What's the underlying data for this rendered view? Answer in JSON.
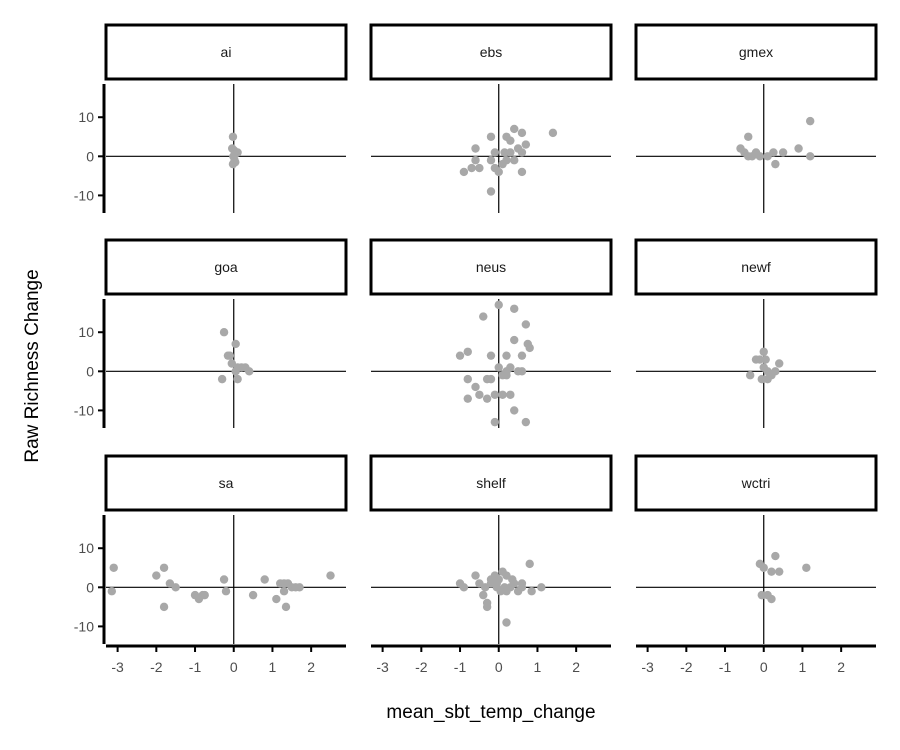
{
  "chart_data": {
    "type": "scatter",
    "facet_layout": "3x3 grid",
    "xlabel": "mean_sbt_temp_change",
    "ylabel": "Raw Richness Change",
    "xlim": [
      -3.3,
      2.9
    ],
    "ylim": [
      -14.5,
      18.5
    ],
    "x_ticks": [
      -3,
      -2,
      -1,
      0,
      1,
      2
    ],
    "y_ticks": [
      -10,
      0,
      10
    ],
    "reference_lines": {
      "x": 0,
      "y": 0
    },
    "grid": false,
    "point_color": "#a8a8a8",
    "panels": [
      {
        "name": "ai",
        "points": [
          [
            -0.02,
            5
          ],
          [
            -0.04,
            2
          ],
          [
            0.01,
            1.5
          ],
          [
            0.03,
            0.5
          ],
          [
            -0.01,
            0
          ],
          [
            0.1,
            1
          ],
          [
            0.02,
            -1
          ],
          [
            -0.02,
            -2
          ],
          [
            0.04,
            -1.5
          ]
        ]
      },
      {
        "name": "ebs",
        "points": [
          [
            -0.9,
            -4
          ],
          [
            -0.7,
            -3
          ],
          [
            -0.6,
            2
          ],
          [
            -0.6,
            -1
          ],
          [
            -0.5,
            -3
          ],
          [
            -0.2,
            -1
          ],
          [
            -0.2,
            5
          ],
          [
            -0.1,
            -3
          ],
          [
            -0.1,
            1
          ],
          [
            0,
            -4
          ],
          [
            -0.2,
            -9
          ],
          [
            0.1,
            -2
          ],
          [
            0.15,
            1
          ],
          [
            0.2,
            -1
          ],
          [
            0.2,
            5
          ],
          [
            0.3,
            4
          ],
          [
            0.3,
            1
          ],
          [
            0.4,
            -1
          ],
          [
            0.4,
            7
          ],
          [
            0.5,
            2
          ],
          [
            0.6,
            6
          ],
          [
            0.6,
            1
          ],
          [
            0.6,
            -4
          ],
          [
            0.7,
            3
          ],
          [
            1.4,
            6
          ]
        ]
      },
      {
        "name": "gmex",
        "points": [
          [
            -0.6,
            2
          ],
          [
            -0.5,
            1
          ],
          [
            -0.4,
            5
          ],
          [
            -0.4,
            0
          ],
          [
            -0.3,
            0
          ],
          [
            -0.2,
            1
          ],
          [
            -0.1,
            0
          ],
          [
            0.1,
            0
          ],
          [
            0.25,
            1
          ],
          [
            0.3,
            -2
          ],
          [
            0.5,
            1
          ],
          [
            0.9,
            2
          ],
          [
            1.2,
            9
          ],
          [
            1.2,
            0
          ]
        ]
      },
      {
        "name": "goa",
        "points": [
          [
            -0.25,
            10
          ],
          [
            -0.15,
            4
          ],
          [
            -0.1,
            4
          ],
          [
            -0.05,
            2
          ],
          [
            0.05,
            7
          ],
          [
            0.05,
            0
          ],
          [
            0.1,
            1
          ],
          [
            0.1,
            -2
          ],
          [
            0.2,
            1
          ],
          [
            0.3,
            1
          ],
          [
            0.4,
            0
          ],
          [
            -0.3,
            -2
          ]
        ]
      },
      {
        "name": "neus",
        "points": [
          [
            -1.0,
            4
          ],
          [
            -0.8,
            5
          ],
          [
            -0.8,
            -2
          ],
          [
            -0.8,
            -7
          ],
          [
            -0.6,
            -4
          ],
          [
            -0.5,
            -6
          ],
          [
            -0.4,
            14
          ],
          [
            -0.3,
            -7
          ],
          [
            -0.3,
            -2
          ],
          [
            -0.2,
            -2
          ],
          [
            -0.2,
            4
          ],
          [
            -0.1,
            -13
          ],
          [
            -0.1,
            -6
          ],
          [
            0,
            17
          ],
          [
            0,
            1
          ],
          [
            0.1,
            -1
          ],
          [
            0.1,
            -6
          ],
          [
            0.2,
            -1
          ],
          [
            0.2,
            0
          ],
          [
            0.2,
            4
          ],
          [
            0.3,
            1
          ],
          [
            0.3,
            -6
          ],
          [
            0.4,
            -10
          ],
          [
            0.4,
            16
          ],
          [
            0.4,
            8
          ],
          [
            0.5,
            0
          ],
          [
            0.6,
            4
          ],
          [
            0.6,
            0
          ],
          [
            0.7,
            12
          ],
          [
            0.7,
            -13
          ],
          [
            0.75,
            7
          ],
          [
            0.8,
            6
          ]
        ]
      },
      {
        "name": "newf",
        "points": [
          [
            -0.35,
            -1
          ],
          [
            -0.2,
            3
          ],
          [
            -0.1,
            3
          ],
          [
            0,
            5
          ],
          [
            0,
            1
          ],
          [
            0.05,
            3
          ],
          [
            0.1,
            -2
          ],
          [
            0.1,
            0
          ],
          [
            -0.05,
            -2
          ],
          [
            0.2,
            -1
          ],
          [
            0.3,
            0
          ],
          [
            0.4,
            2
          ]
        ]
      },
      {
        "name": "sa",
        "points": [
          [
            -3.1,
            5
          ],
          [
            -3.15,
            -1
          ],
          [
            -2.0,
            3
          ],
          [
            -1.8,
            5
          ],
          [
            -1.8,
            -5
          ],
          [
            -1.65,
            1
          ],
          [
            -1.5,
            0
          ],
          [
            -1.0,
            -2
          ],
          [
            -0.9,
            -3
          ],
          [
            -0.8,
            -2
          ],
          [
            -0.75,
            -2
          ],
          [
            -0.25,
            2
          ],
          [
            -0.2,
            -1
          ],
          [
            0.5,
            -2
          ],
          [
            0.8,
            2
          ],
          [
            1.1,
            -3
          ],
          [
            1.2,
            1
          ],
          [
            1.3,
            -1
          ],
          [
            1.3,
            1
          ],
          [
            1.35,
            -5
          ],
          [
            1.4,
            1
          ],
          [
            1.5,
            0
          ],
          [
            1.6,
            0
          ],
          [
            1.7,
            0
          ],
          [
            2.5,
            3
          ]
        ]
      },
      {
        "name": "shelf",
        "points": [
          [
            -1.0,
            1
          ],
          [
            -0.9,
            0
          ],
          [
            -0.6,
            3
          ],
          [
            -0.5,
            1
          ],
          [
            -0.4,
            -2
          ],
          [
            -0.35,
            0
          ],
          [
            -0.3,
            -4
          ],
          [
            -0.3,
            -5
          ],
          [
            -0.2,
            1
          ],
          [
            -0.2,
            2
          ],
          [
            -0.1,
            3
          ],
          [
            -0.05,
            1
          ],
          [
            -0.05,
            0
          ],
          [
            0,
            2
          ],
          [
            0.05,
            -1
          ],
          [
            0.1,
            4
          ],
          [
            0.15,
            0
          ],
          [
            0.2,
            3
          ],
          [
            0.2,
            -1
          ],
          [
            0.2,
            -9
          ],
          [
            0.3,
            0
          ],
          [
            0.35,
            2
          ],
          [
            0.4,
            1
          ],
          [
            0.5,
            -1
          ],
          [
            0.6,
            0
          ],
          [
            0.6,
            1
          ],
          [
            0.8,
            6
          ],
          [
            0.85,
            -1
          ],
          [
            1.1,
            0
          ]
        ]
      },
      {
        "name": "wctri",
        "points": [
          [
            -0.1,
            6
          ],
          [
            -0.05,
            -2
          ],
          [
            0,
            5
          ],
          [
            0.1,
            -2
          ],
          [
            0.2,
            -3
          ],
          [
            0.2,
            4
          ],
          [
            0.3,
            8
          ],
          [
            0.4,
            4
          ],
          [
            1.1,
            5
          ]
        ]
      }
    ]
  }
}
